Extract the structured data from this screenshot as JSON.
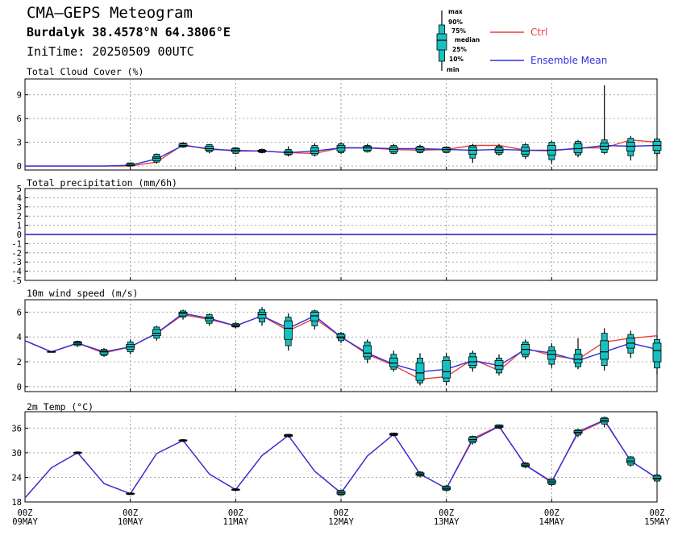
{
  "header": {
    "title": "CMA–GEPS Meteogram",
    "location": "Burdalyk 38.4578°N 64.3806°E",
    "init_time": "IniTime: 20250509 00UTC"
  },
  "legend": {
    "box_labels": [
      "max",
      "90%",
      "75%",
      "median",
      "25%",
      "10%",
      "min"
    ],
    "ctrl_label": "Ctrl",
    "mean_label": "Ensemble Mean",
    "ctrl_color": "#e8403c",
    "mean_color": "#3030e0",
    "box_fill": "#18c0c0"
  },
  "chart_data": [
    {
      "type": "box",
      "title": "Total Cloud Cover (%)",
      "ylim": [
        -0.5,
        11
      ],
      "yticks": [
        0,
        3,
        6,
        9
      ],
      "x_steps": [
        0,
        1,
        2,
        3,
        4,
        5,
        6,
        7,
        8,
        9,
        10,
        11,
        12,
        13,
        14,
        15,
        16,
        17,
        18,
        19,
        20,
        21,
        22,
        23,
        24
      ],
      "ctrl": [
        0,
        0,
        0,
        0,
        0,
        0.5,
        2.7,
        2.1,
        2.0,
        1.9,
        1.7,
        1.6,
        2.3,
        2.3,
        2.1,
        2.0,
        2.1,
        2.6,
        2.6,
        2.0,
        1.9,
        2.3,
        2.3,
        3.3,
        3.0
      ],
      "mean": [
        0,
        0,
        0,
        0,
        0.1,
        0.9,
        2.6,
        2.2,
        1.9,
        1.9,
        1.7,
        1.9,
        2.3,
        2.3,
        2.2,
        2.2,
        2.1,
        2.0,
        2.1,
        2.0,
        2.0,
        2.2,
        2.6,
        2.5,
        2.6
      ],
      "boxes": [
        {
          "step": 4,
          "min": 0,
          "p10": 0,
          "p25": 0.05,
          "median": 0.1,
          "p75": 0.3,
          "p90": 0.4,
          "max": 0.4
        },
        {
          "step": 5,
          "min": 0.3,
          "p10": 0.5,
          "p25": 0.7,
          "median": 1.0,
          "p75": 1.2,
          "p90": 1.5,
          "max": 1.6
        },
        {
          "step": 6,
          "min": 2.3,
          "p10": 2.4,
          "p25": 2.5,
          "median": 2.6,
          "p75": 2.8,
          "p90": 2.9,
          "max": 3.0
        },
        {
          "step": 7,
          "min": 1.6,
          "p10": 1.8,
          "p25": 2.0,
          "median": 2.2,
          "p75": 2.5,
          "p90": 2.7,
          "max": 2.8
        },
        {
          "step": 8,
          "min": 1.5,
          "p10": 1.6,
          "p25": 1.8,
          "median": 2.0,
          "p75": 2.2,
          "p90": 2.3,
          "max": 2.4
        },
        {
          "step": 9,
          "min": 1.6,
          "p10": 1.7,
          "p25": 1.8,
          "median": 1.9,
          "p75": 2.0,
          "p90": 2.1,
          "max": 2.2
        },
        {
          "step": 10,
          "min": 1.2,
          "p10": 1.4,
          "p25": 1.5,
          "median": 1.7,
          "p75": 1.9,
          "p90": 2.1,
          "max": 2.5
        },
        {
          "step": 11,
          "min": 1.2,
          "p10": 1.4,
          "p25": 1.6,
          "median": 1.9,
          "p75": 2.3,
          "p90": 2.6,
          "max": 2.9
        },
        {
          "step": 12,
          "min": 1.5,
          "p10": 1.7,
          "p25": 1.9,
          "median": 2.3,
          "p75": 2.6,
          "p90": 2.8,
          "max": 3.0
        },
        {
          "step": 13,
          "min": 1.7,
          "p10": 1.8,
          "p25": 2.0,
          "median": 2.3,
          "p75": 2.5,
          "p90": 2.6,
          "max": 2.8
        },
        {
          "step": 14,
          "min": 1.5,
          "p10": 1.6,
          "p25": 1.8,
          "median": 2.1,
          "p75": 2.4,
          "p90": 2.6,
          "max": 2.8
        },
        {
          "step": 15,
          "min": 1.6,
          "p10": 1.7,
          "p25": 1.9,
          "median": 2.1,
          "p75": 2.4,
          "p90": 2.5,
          "max": 2.7
        },
        {
          "step": 16,
          "min": 1.6,
          "p10": 1.7,
          "p25": 1.9,
          "median": 2.1,
          "p75": 2.3,
          "p90": 2.4,
          "max": 2.5
        },
        {
          "step": 17,
          "min": 0.4,
          "p10": 1.0,
          "p25": 1.5,
          "median": 2.0,
          "p75": 2.4,
          "p90": 2.6,
          "max": 2.8
        },
        {
          "step": 18,
          "min": 1.3,
          "p10": 1.5,
          "p25": 1.7,
          "median": 2.0,
          "p75": 2.3,
          "p90": 2.5,
          "max": 2.8
        },
        {
          "step": 19,
          "min": 0.9,
          "p10": 1.2,
          "p25": 1.5,
          "median": 1.9,
          "p75": 2.4,
          "p90": 2.7,
          "max": 2.9
        },
        {
          "step": 20,
          "min": 0.3,
          "p10": 0.8,
          "p25": 1.4,
          "median": 2.0,
          "p75": 2.6,
          "p90": 3.0,
          "max": 3.2
        },
        {
          "step": 21,
          "min": 1.1,
          "p10": 1.4,
          "p25": 1.7,
          "median": 2.2,
          "p75": 2.8,
          "p90": 3.1,
          "max": 3.3
        },
        {
          "step": 22,
          "min": 1.5,
          "p10": 1.7,
          "p25": 2.1,
          "median": 2.5,
          "p75": 2.9,
          "p90": 3.3,
          "max": 10.2
        },
        {
          "step": 23,
          "min": 0.7,
          "p10": 1.3,
          "p25": 1.9,
          "median": 2.5,
          "p75": 3.0,
          "p90": 3.5,
          "max": 3.8
        },
        {
          "step": 24,
          "min": 1.2,
          "p10": 1.6,
          "p25": 2.0,
          "median": 2.6,
          "p75": 3.1,
          "p90": 3.4,
          "max": 3.6
        }
      ]
    },
    {
      "type": "line",
      "title": "Total precipitation (mm/6h)",
      "ylim": [
        -5,
        5
      ],
      "yticks": [
        -5,
        -4,
        -3,
        -2,
        -1,
        0,
        1,
        2,
        3,
        4,
        5
      ],
      "x_steps": [
        0,
        24
      ],
      "ctrl": [
        0,
        0
      ],
      "mean": [
        0,
        0
      ]
    },
    {
      "type": "box",
      "title": "10m wind speed (m/s)",
      "ylim": [
        -0.4,
        7
      ],
      "yticks": [
        0,
        2,
        4,
        6
      ],
      "x_steps": [
        0,
        1,
        2,
        3,
        4,
        5,
        6,
        7,
        8,
        9,
        10,
        11,
        12,
        13,
        14,
        15,
        16,
        17,
        18,
        19,
        20,
        21,
        22,
        23,
        24
      ],
      "ctrl": [
        3.7,
        2.8,
        3.5,
        2.7,
        3.2,
        4.3,
        5.8,
        5.4,
        4.9,
        5.7,
        4.5,
        5.5,
        4.0,
        2.6,
        1.7,
        0.6,
        0.8,
        2.2,
        1.3,
        3.1,
        2.5,
        2.2,
        3.6,
        3.9,
        4.1
      ],
      "mean": [
        3.7,
        2.8,
        3.5,
        2.8,
        3.2,
        4.3,
        5.9,
        5.5,
        4.9,
        5.7,
        4.7,
        5.7,
        4.0,
        2.7,
        1.8,
        1.2,
        1.4,
        2.1,
        1.7,
        3.0,
        2.7,
        2.1,
        2.8,
        3.5,
        3.0
      ],
      "boxes": [
        {
          "step": 1,
          "min": 2.75,
          "p10": 2.76,
          "p25": 2.78,
          "median": 2.8,
          "p75": 2.82,
          "p90": 2.84,
          "max": 2.85
        },
        {
          "step": 2,
          "min": 3.2,
          "p10": 3.3,
          "p25": 3.4,
          "median": 3.5,
          "p75": 3.6,
          "p90": 3.65,
          "max": 3.7
        },
        {
          "step": 3,
          "min": 2.4,
          "p10": 2.5,
          "p25": 2.6,
          "median": 2.8,
          "p75": 2.9,
          "p90": 3.0,
          "max": 3.1
        },
        {
          "step": 4,
          "min": 2.6,
          "p10": 2.8,
          "p25": 3.0,
          "median": 3.2,
          "p75": 3.4,
          "p90": 3.6,
          "max": 3.8
        },
        {
          "step": 5,
          "min": 3.7,
          "p10": 3.9,
          "p25": 4.1,
          "median": 4.3,
          "p75": 4.6,
          "p90": 4.8,
          "max": 4.9
        },
        {
          "step": 6,
          "min": 5.4,
          "p10": 5.6,
          "p25": 5.7,
          "median": 5.9,
          "p75": 6.0,
          "p90": 6.1,
          "max": 6.2
        },
        {
          "step": 7,
          "min": 4.9,
          "p10": 5.1,
          "p25": 5.3,
          "median": 5.5,
          "p75": 5.6,
          "p90": 5.8,
          "max": 5.9
        },
        {
          "step": 8,
          "min": 4.7,
          "p10": 4.8,
          "p25": 4.85,
          "median": 4.9,
          "p75": 5.0,
          "p90": 5.1,
          "max": 5.2
        },
        {
          "step": 9,
          "min": 4.9,
          "p10": 5.2,
          "p25": 5.5,
          "median": 5.8,
          "p75": 6.0,
          "p90": 6.2,
          "max": 6.4
        },
        {
          "step": 10,
          "min": 2.9,
          "p10": 3.3,
          "p25": 3.8,
          "median": 4.7,
          "p75": 5.3,
          "p90": 5.6,
          "max": 5.9
        },
        {
          "step": 11,
          "min": 4.6,
          "p10": 4.9,
          "p25": 5.3,
          "median": 5.7,
          "p75": 6.0,
          "p90": 6.1,
          "max": 6.2
        },
        {
          "step": 12,
          "min": 3.5,
          "p10": 3.7,
          "p25": 3.9,
          "median": 4.0,
          "p75": 4.2,
          "p90": 4.3,
          "max": 4.4
        },
        {
          "step": 13,
          "min": 1.9,
          "p10": 2.2,
          "p25": 2.4,
          "median": 2.7,
          "p75": 3.3,
          "p90": 3.6,
          "max": 3.8
        },
        {
          "step": 14,
          "min": 1.2,
          "p10": 1.4,
          "p25": 1.6,
          "median": 1.9,
          "p75": 2.3,
          "p90": 2.6,
          "max": 2.9
        },
        {
          "step": 15,
          "min": 0.1,
          "p10": 0.3,
          "p25": 0.5,
          "median": 1.1,
          "p75": 1.9,
          "p90": 2.3,
          "max": 2.7
        },
        {
          "step": 16,
          "min": 0.1,
          "p10": 0.4,
          "p25": 0.7,
          "median": 1.2,
          "p75": 2.1,
          "p90": 2.4,
          "max": 2.7
        },
        {
          "step": 17,
          "min": 1.2,
          "p10": 1.5,
          "p25": 1.7,
          "median": 2.0,
          "p75": 2.4,
          "p90": 2.7,
          "max": 2.9
        },
        {
          "step": 18,
          "min": 0.9,
          "p10": 1.1,
          "p25": 1.4,
          "median": 1.7,
          "p75": 2.1,
          "p90": 2.3,
          "max": 2.6
        },
        {
          "step": 19,
          "min": 2.2,
          "p10": 2.4,
          "p25": 2.6,
          "median": 3.0,
          "p75": 3.4,
          "p90": 3.6,
          "max": 3.8
        },
        {
          "step": 20,
          "min": 1.5,
          "p10": 1.8,
          "p25": 2.2,
          "median": 2.6,
          "p75": 2.9,
          "p90": 3.2,
          "max": 3.5
        },
        {
          "step": 21,
          "min": 1.4,
          "p10": 1.6,
          "p25": 1.9,
          "median": 2.2,
          "p75": 2.6,
          "p90": 3.0,
          "max": 3.9
        },
        {
          "step": 22,
          "min": 1.3,
          "p10": 1.7,
          "p25": 2.2,
          "median": 2.8,
          "p75": 3.7,
          "p90": 4.3,
          "max": 4.7
        },
        {
          "step": 23,
          "min": 2.3,
          "p10": 2.7,
          "p25": 3.1,
          "median": 3.5,
          "p75": 3.9,
          "p90": 4.2,
          "max": 4.5
        },
        {
          "step": 24,
          "min": 1.0,
          "p10": 1.5,
          "p25": 2.0,
          "median": 2.9,
          "p75": 3.5,
          "p90": 3.8,
          "max": 4.1
        }
      ]
    },
    {
      "type": "box",
      "title": "2m Temp (°C)",
      "ylim": [
        18,
        40
      ],
      "yticks": [
        18,
        24,
        30,
        36
      ],
      "x_steps": [
        0,
        1,
        2,
        3,
        4,
        5,
        6,
        7,
        8,
        9,
        10,
        11,
        12,
        13,
        14,
        15,
        16,
        17,
        18,
        19,
        20,
        21,
        22,
        23,
        24
      ],
      "ctrl": [
        19.0,
        26.3,
        30.0,
        22.5,
        20.0,
        29.8,
        33.0,
        24.8,
        21.0,
        29.3,
        34.2,
        25.5,
        20.2,
        29.2,
        34.5,
        24.8,
        21.3,
        33.5,
        36.5,
        27.0,
        23.0,
        34.8,
        37.8,
        28.0,
        23.8
      ],
      "mean": [
        19.0,
        26.3,
        30.0,
        22.5,
        20.0,
        29.8,
        33.0,
        24.8,
        21.0,
        29.3,
        34.2,
        25.5,
        20.2,
        29.2,
        34.5,
        24.8,
        21.3,
        33.1,
        36.4,
        27.0,
        22.8,
        35.1,
        38.0,
        28.0,
        23.8
      ],
      "boxes": [
        {
          "step": 2,
          "min": 29.7,
          "p10": 29.8,
          "p25": 29.9,
          "median": 30.0,
          "p75": 30.1,
          "p90": 30.2,
          "max": 30.3
        },
        {
          "step": 4,
          "min": 19.7,
          "p10": 19.8,
          "p25": 19.9,
          "median": 20.0,
          "p75": 20.1,
          "p90": 20.2,
          "max": 20.3
        },
        {
          "step": 6,
          "min": 32.6,
          "p10": 32.8,
          "p25": 32.9,
          "median": 33.0,
          "p75": 33.1,
          "p90": 33.2,
          "max": 33.3
        },
        {
          "step": 8,
          "min": 20.6,
          "p10": 20.8,
          "p25": 20.9,
          "median": 21.0,
          "p75": 21.1,
          "p90": 21.2,
          "max": 21.4
        },
        {
          "step": 10,
          "min": 33.7,
          "p10": 33.9,
          "p25": 34.0,
          "median": 34.2,
          "p75": 34.4,
          "p90": 34.5,
          "max": 34.6
        },
        {
          "step": 12,
          "min": 19.5,
          "p10": 19.7,
          "p25": 19.9,
          "median": 20.2,
          "p75": 20.6,
          "p90": 20.8,
          "max": 21.0
        },
        {
          "step": 14,
          "min": 34.0,
          "p10": 34.2,
          "p25": 34.3,
          "median": 34.5,
          "p75": 34.7,
          "p90": 34.8,
          "max": 34.9
        },
        {
          "step": 15,
          "min": 24.0,
          "p10": 24.3,
          "p25": 24.5,
          "median": 24.8,
          "p75": 25.1,
          "p90": 25.3,
          "max": 25.5
        },
        {
          "step": 16,
          "min": 20.5,
          "p10": 20.8,
          "p25": 21.0,
          "median": 21.3,
          "p75": 21.7,
          "p90": 21.9,
          "max": 22.1
        },
        {
          "step": 17,
          "min": 32.0,
          "p10": 32.4,
          "p25": 32.8,
          "median": 33.2,
          "p75": 33.7,
          "p90": 34.0,
          "max": 34.2
        },
        {
          "step": 18,
          "min": 35.8,
          "p10": 36.0,
          "p25": 36.2,
          "median": 36.4,
          "p75": 36.7,
          "p90": 36.8,
          "max": 36.9
        },
        {
          "step": 19,
          "min": 26.2,
          "p10": 26.5,
          "p25": 26.7,
          "median": 27.0,
          "p75": 27.3,
          "p90": 27.5,
          "max": 27.7
        },
        {
          "step": 20,
          "min": 21.8,
          "p10": 22.2,
          "p25": 22.5,
          "median": 22.9,
          "p75": 23.3,
          "p90": 23.6,
          "max": 23.8
        },
        {
          "step": 21,
          "min": 33.8,
          "p10": 34.3,
          "p25": 34.7,
          "median": 35.0,
          "p75": 35.4,
          "p90": 35.6,
          "max": 35.8
        },
        {
          "step": 22,
          "min": 36.2,
          "p10": 37.0,
          "p25": 37.5,
          "median": 37.9,
          "p75": 38.3,
          "p90": 38.6,
          "max": 38.8
        },
        {
          "step": 23,
          "min": 26.6,
          "p10": 27.0,
          "p25": 27.5,
          "median": 28.0,
          "p75": 28.6,
          "p90": 29.0,
          "max": 29.2
        },
        {
          "step": 24,
          "min": 22.8,
          "p10": 23.1,
          "p25": 23.5,
          "median": 23.8,
          "p75": 24.3,
          "p90": 24.6,
          "max": 24.9
        }
      ]
    }
  ],
  "x_axis": {
    "ticks": [
      {
        "hour": "00Z",
        "date": "09MAY"
      },
      {
        "hour": "00Z",
        "date": "10MAY"
      },
      {
        "hour": "00Z",
        "date": "11MAY"
      },
      {
        "hour": "00Z",
        "date": "12MAY"
      },
      {
        "hour": "00Z",
        "date": "13MAY"
      },
      {
        "hour": "00Z",
        "date": "14MAY"
      },
      {
        "hour": "00Z",
        "date": "15MAY"
      }
    ]
  }
}
